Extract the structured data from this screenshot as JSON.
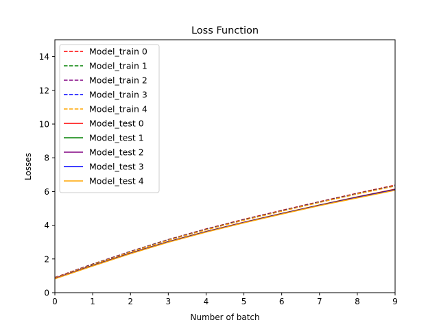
{
  "chart_data": {
    "type": "line",
    "title": "Loss Function",
    "xlabel": "Number of batch",
    "ylabel": "Losses",
    "xlim": [
      0,
      9
    ],
    "ylim": [
      0,
      15
    ],
    "xticks": [
      0,
      1,
      2,
      3,
      4,
      5,
      6,
      7,
      8,
      9
    ],
    "yticks": [
      0,
      2,
      4,
      6,
      8,
      10,
      12,
      14
    ],
    "grid": false,
    "legend_position": "upper-left",
    "x": [
      0,
      1,
      2,
      3,
      4,
      5,
      6,
      7,
      8,
      9
    ],
    "series": [
      {
        "name": "Model_train 0",
        "style": "dashed",
        "color": "#ff0000",
        "values": [
          0.9,
          1.7,
          2.45,
          3.15,
          3.78,
          4.35,
          4.88,
          5.4,
          5.9,
          6.38
        ]
      },
      {
        "name": "Model_train 1",
        "style": "dashed",
        "color": "#008000",
        "values": [
          0.89,
          1.69,
          2.44,
          3.14,
          3.76,
          4.33,
          4.86,
          5.38,
          5.88,
          6.35
        ]
      },
      {
        "name": "Model_train 2",
        "style": "dashed",
        "color": "#800080",
        "values": [
          0.89,
          1.68,
          2.43,
          3.13,
          3.75,
          4.32,
          4.85,
          5.37,
          5.87,
          6.34
        ]
      },
      {
        "name": "Model_train 3",
        "style": "dashed",
        "color": "#0000ff",
        "values": [
          0.88,
          1.67,
          2.42,
          3.12,
          3.74,
          4.31,
          4.84,
          5.36,
          5.86,
          6.33
        ]
      },
      {
        "name": "Model_train 4",
        "style": "dashed",
        "color": "#ffa500",
        "values": [
          0.88,
          1.66,
          2.41,
          3.11,
          3.73,
          4.3,
          4.83,
          5.35,
          5.85,
          6.32
        ]
      },
      {
        "name": "Model_test 0",
        "style": "solid",
        "color": "#ff0000",
        "values": [
          0.85,
          1.62,
          2.35,
          3.03,
          3.63,
          4.18,
          4.7,
          5.2,
          5.68,
          6.14
        ]
      },
      {
        "name": "Model_test 1",
        "style": "solid",
        "color": "#008000",
        "values": [
          0.84,
          1.61,
          2.34,
          3.02,
          3.62,
          4.17,
          4.69,
          5.19,
          5.67,
          6.12
        ]
      },
      {
        "name": "Model_test 2",
        "style": "solid",
        "color": "#800080",
        "values": [
          0.84,
          1.6,
          2.33,
          3.01,
          3.61,
          4.16,
          4.68,
          5.18,
          5.66,
          6.11
        ]
      },
      {
        "name": "Model_test 3",
        "style": "solid",
        "color": "#0000ff",
        "values": [
          0.83,
          1.59,
          2.32,
          3.0,
          3.6,
          4.15,
          4.67,
          5.17,
          5.64,
          6.09
        ]
      },
      {
        "name": "Model_test 4",
        "style": "solid",
        "color": "#ffa500",
        "values": [
          0.82,
          1.58,
          2.31,
          2.99,
          3.59,
          4.14,
          4.66,
          5.16,
          5.62,
          6.07
        ]
      }
    ]
  }
}
